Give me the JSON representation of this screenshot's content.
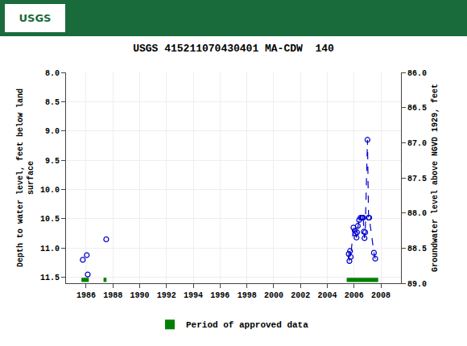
{
  "chart_data": {
    "type": "scatter",
    "title": "USGS 415211070430401 MA-CDW  140",
    "annotations": [
      "USGS"
    ],
    "ylabel": "Depth to water level, feet below land\nsurface",
    "y2label": "Groundwater level above NGVD 1929, feet",
    "xlim": [
      1984.5,
      2009.5
    ],
    "xticks": [
      1986,
      1988,
      1990,
      1992,
      1994,
      1996,
      1998,
      2000,
      2002,
      2004,
      2006,
      2008
    ],
    "ylim": [
      11.6,
      8.0
    ],
    "yticks": [
      {
        "value": 8.0,
        "label": "8.0"
      },
      8.5,
      {
        "value": 9.0,
        "label": "9.0"
      },
      9.5,
      {
        "value": 10.0,
        "label": "10.0"
      },
      10.5,
      {
        "value": 11.0,
        "label": "11.0"
      },
      11.5
    ],
    "y2lim": [
      89.0,
      86.0
    ],
    "y2ticks": [
      {
        "value": 86.0,
        "label": "86.0"
      },
      86.5,
      {
        "value": 87.0,
        "label": "87.0"
      },
      87.5,
      {
        "value": 88.0,
        "label": "88.0"
      },
      88.5,
      {
        "value": 89.0,
        "label": "89.0"
      }
    ],
    "grid": true,
    "legend": "bottom",
    "series": [
      {
        "type": "scatter",
        "color": "#0000cc",
        "marker": "open circle",
        "x": [
          1985.75,
          1986.05,
          1986.12,
          1987.5,
          2005.6,
          2005.65,
          2005.7,
          2005.75,
          2005.95,
          2006.05,
          2006.1,
          2006.18,
          2006.22,
          2006.28,
          2006.38,
          2006.48,
          2006.58,
          2006.62,
          2006.68,
          2006.73,
          2006.78,
          2006.83,
          2007.0,
          2007.08,
          2007.13,
          2007.48,
          2007.58
        ],
        "values": [
          11.2,
          11.12,
          11.45,
          10.85,
          11.1,
          11.22,
          11.05,
          11.15,
          10.65,
          10.7,
          10.75,
          10.82,
          10.73,
          10.62,
          10.52,
          10.48,
          10.48,
          10.48,
          10.48,
          10.72,
          10.83,
          10.73,
          9.15,
          10.48,
          10.48,
          11.08,
          11.18
        ]
      },
      {
        "type": "line",
        "color": "#0000cc",
        "line_style": "dashed",
        "x": [
          2005.6,
          2005.65,
          2005.7,
          2005.75,
          2005.95,
          2006.05,
          2006.1,
          2006.18,
          2006.22,
          2006.28,
          2006.38,
          2006.48,
          2006.58,
          2006.62,
          2006.68,
          2006.73,
          2006.78,
          2006.83,
          2007.0,
          2007.08,
          2007.13,
          2007.48,
          2007.58
        ],
        "values": [
          11.1,
          11.22,
          11.05,
          11.15,
          10.65,
          10.7,
          10.75,
          10.82,
          10.73,
          10.62,
          10.52,
          10.48,
          10.48,
          10.48,
          10.48,
          10.72,
          10.83,
          10.73,
          9.15,
          10.48,
          10.48,
          11.08,
          11.18
        ]
      }
    ],
    "approved_periods": {
      "name": "Period of approved data",
      "color": "#008000",
      "start": [
        1985.65,
        1987.3,
        2005.45
      ],
      "width": [
        0.55,
        0.22,
        2.35
      ]
    }
  }
}
